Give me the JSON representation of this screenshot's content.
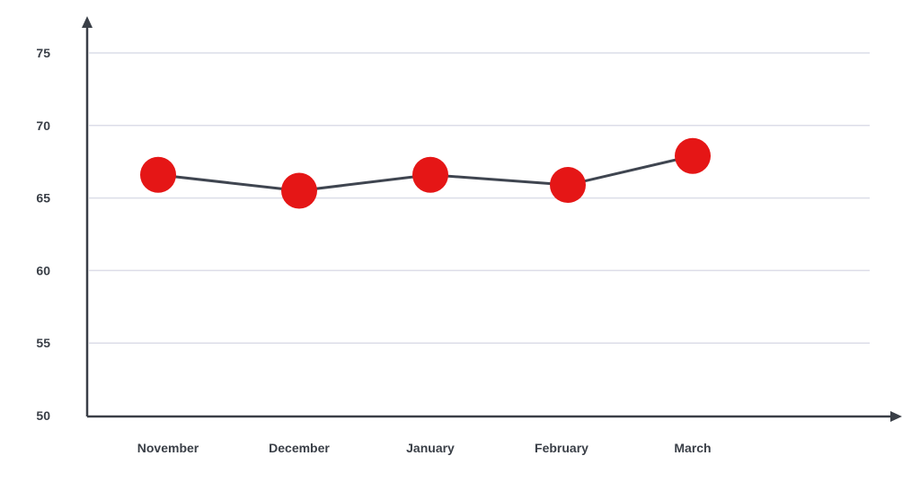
{
  "chart_data": {
    "type": "line",
    "categories": [
      "November",
      "December",
      "January",
      "February",
      "March"
    ],
    "series": [
      {
        "values": [
          66.6,
          65.5,
          66.6,
          65.9,
          67.9
        ]
      }
    ],
    "yticks": [
      50,
      55,
      60,
      65,
      70,
      75
    ],
    "ylim": [
      50,
      78
    ],
    "grid": true,
    "legend": "none",
    "colors": {
      "marker": "#e51616",
      "line": "#3f4550",
      "axis": "#3a3f47",
      "grid": "#dcdde8"
    }
  }
}
